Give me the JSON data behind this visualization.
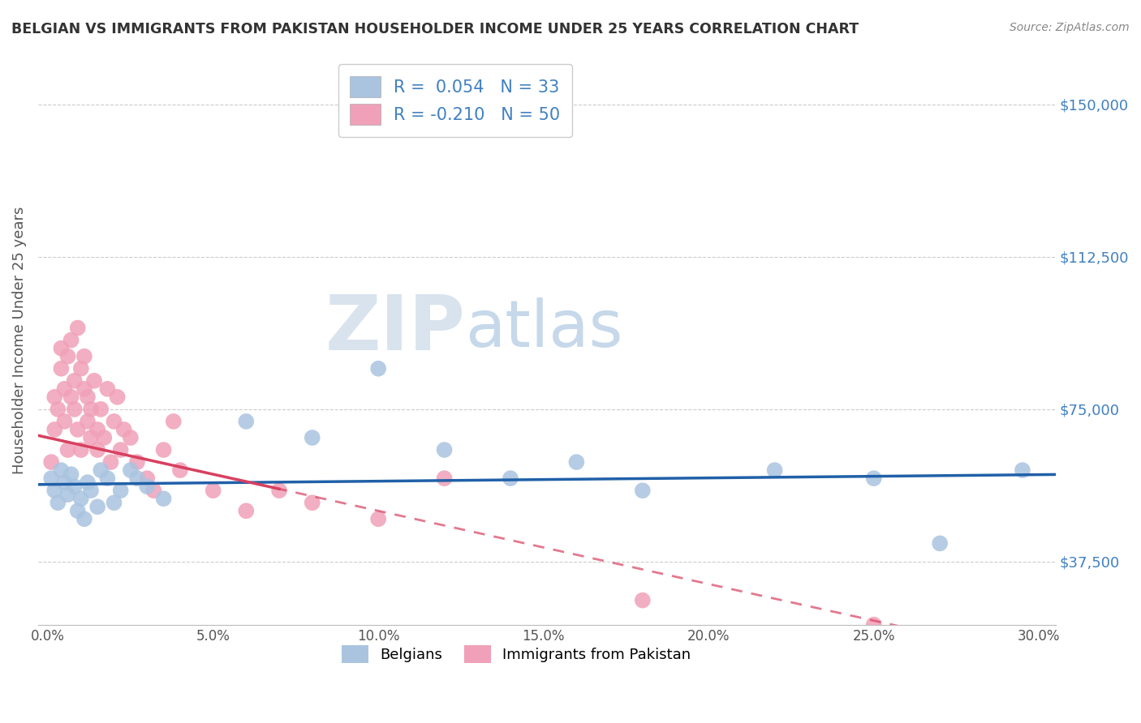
{
  "title": "BELGIAN VS IMMIGRANTS FROM PAKISTAN HOUSEHOLDER INCOME UNDER 25 YEARS CORRELATION CHART",
  "source": "Source: ZipAtlas.com",
  "ylabel": "Householder Income Under 25 years",
  "xlabel_ticks": [
    "0.0%",
    "5.0%",
    "10.0%",
    "15.0%",
    "20.0%",
    "25.0%",
    "30.0%"
  ],
  "xlabel_vals": [
    0.0,
    0.05,
    0.1,
    0.15,
    0.2,
    0.25,
    0.3
  ],
  "ylabel_ticks": [
    "$37,500",
    "$75,000",
    "$112,500",
    "$150,000"
  ],
  "ylabel_vals": [
    37500,
    75000,
    112500,
    150000
  ],
  "xlim": [
    -0.003,
    0.305
  ],
  "ylim": [
    22000,
    162000
  ],
  "r_belgian": 0.054,
  "n_belgian": 33,
  "r_pakistan": -0.21,
  "n_pakistan": 50,
  "belgian_color": "#aac4e0",
  "pakistan_color": "#f0a0b8",
  "belgian_line_color": "#2060a8",
  "pakistan_line_color": "#d84060",
  "watermark_zip": "ZIP",
  "watermark_atlas": "atlas",
  "background_color": "#ffffff",
  "grid_color": "#cccccc",
  "title_color": "#333333",
  "tick_color_y": "#4080c0",
  "belgians_scatter_x": [
    0.001,
    0.002,
    0.003,
    0.004,
    0.005,
    0.006,
    0.007,
    0.008,
    0.009,
    0.01,
    0.011,
    0.012,
    0.013,
    0.015,
    0.016,
    0.018,
    0.02,
    0.022,
    0.025,
    0.027,
    0.03,
    0.035,
    0.06,
    0.08,
    0.1,
    0.12,
    0.14,
    0.16,
    0.18,
    0.22,
    0.25,
    0.27,
    0.295
  ],
  "belgians_scatter_y": [
    58000,
    55000,
    52000,
    60000,
    57000,
    54000,
    59000,
    56000,
    50000,
    53000,
    48000,
    57000,
    55000,
    51000,
    60000,
    58000,
    52000,
    55000,
    60000,
    58000,
    56000,
    53000,
    72000,
    68000,
    85000,
    65000,
    58000,
    62000,
    55000,
    60000,
    58000,
    42000,
    60000
  ],
  "pakistan_scatter_x": [
    0.001,
    0.002,
    0.002,
    0.003,
    0.004,
    0.004,
    0.005,
    0.005,
    0.006,
    0.006,
    0.007,
    0.007,
    0.008,
    0.008,
    0.009,
    0.009,
    0.01,
    0.01,
    0.011,
    0.011,
    0.012,
    0.012,
    0.013,
    0.013,
    0.014,
    0.015,
    0.015,
    0.016,
    0.017,
    0.018,
    0.019,
    0.02,
    0.021,
    0.022,
    0.023,
    0.025,
    0.027,
    0.03,
    0.032,
    0.035,
    0.038,
    0.04,
    0.05,
    0.06,
    0.07,
    0.08,
    0.1,
    0.12,
    0.18,
    0.25
  ],
  "pakistan_scatter_y": [
    62000,
    70000,
    78000,
    75000,
    85000,
    90000,
    80000,
    72000,
    88000,
    65000,
    92000,
    78000,
    75000,
    82000,
    95000,
    70000,
    85000,
    65000,
    80000,
    88000,
    72000,
    78000,
    68000,
    75000,
    82000,
    70000,
    65000,
    75000,
    68000,
    80000,
    62000,
    72000,
    78000,
    65000,
    70000,
    68000,
    62000,
    58000,
    55000,
    65000,
    72000,
    60000,
    55000,
    50000,
    55000,
    52000,
    48000,
    58000,
    28000,
    22000
  ]
}
